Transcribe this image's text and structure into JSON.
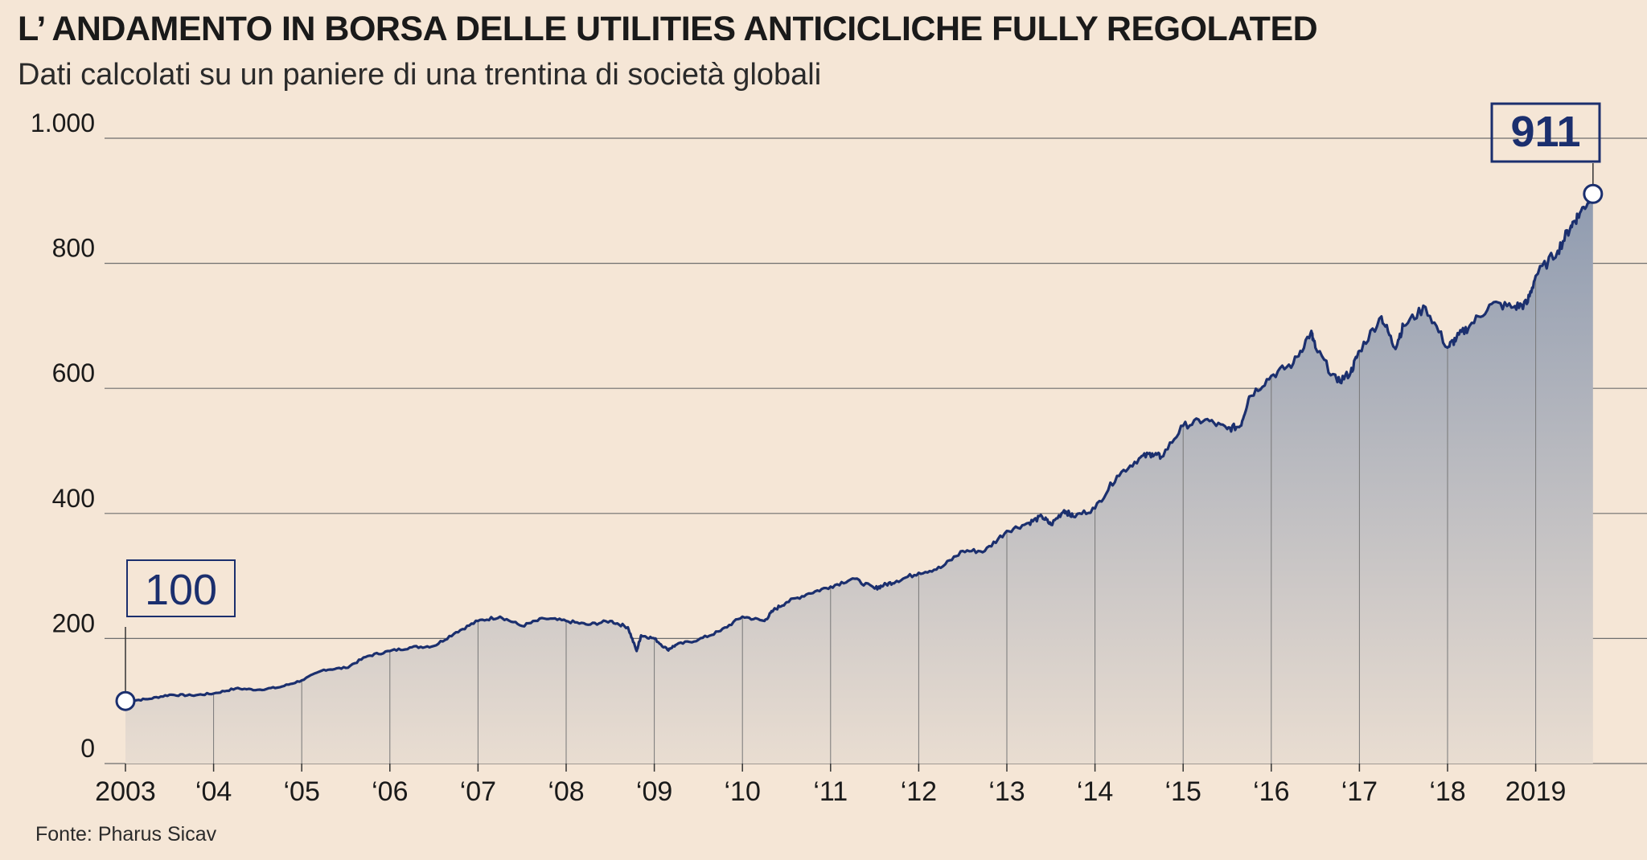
{
  "title": "L’ ANDAMENTO IN BORSA DELLE UTILITIES ANTICICLICHE FULLY REGOLATED",
  "subtitle": "Dati calcolati su un paniere di una trentina di società globali",
  "source": "Fonte: Pharus Sicav",
  "colors": {
    "line": "#1b2f6e",
    "area_top": "#8f9bb0",
    "area_bottom": "#e9ddd1",
    "grid": "#6e6e6e",
    "background": "#f5e6d6"
  },
  "chart_data": {
    "type": "area",
    "title": "L’ ANDAMENTO IN BORSA DELLE UTILITIES ANTICICLICHE FULLY REGOLATED",
    "subtitle": "Dati calcolati su un paniere di una trentina di società globali",
    "xlabel": "",
    "ylabel": "",
    "ylim": [
      0,
      1000
    ],
    "xlim": [
      2003.0,
      2020.2
    ],
    "grid": true,
    "y_ticks": [
      {
        "value": 0,
        "label": "0"
      },
      {
        "value": 200,
        "label": "200"
      },
      {
        "value": 400,
        "label": "400"
      },
      {
        "value": 600,
        "label": "600"
      },
      {
        "value": 800,
        "label": "800"
      },
      {
        "value": 1000,
        "label": "1.000"
      }
    ],
    "x_ticks": [
      {
        "value": 2003,
        "label": "2003"
      },
      {
        "value": 2004,
        "label": "‘04"
      },
      {
        "value": 2005,
        "label": "‘05"
      },
      {
        "value": 2006,
        "label": "‘06"
      },
      {
        "value": 2007,
        "label": "‘07"
      },
      {
        "value": 2008,
        "label": "‘08"
      },
      {
        "value": 2009,
        "label": "‘09"
      },
      {
        "value": 2010,
        "label": "‘10"
      },
      {
        "value": 2011,
        "label": "‘11"
      },
      {
        "value": 2012,
        "label": "‘12"
      },
      {
        "value": 2013,
        "label": "‘13"
      },
      {
        "value": 2014,
        "label": "‘14"
      },
      {
        "value": 2015,
        "label": "‘15"
      },
      {
        "value": 2016,
        "label": "‘16"
      },
      {
        "value": 2017,
        "label": "‘17"
      },
      {
        "value": 2018,
        "label": "‘18"
      },
      {
        "value": 2019,
        "label": "2019"
      }
    ],
    "x": [
      2003.0,
      2003.25,
      2003.5,
      2003.75,
      2004.0,
      2004.25,
      2004.5,
      2004.75,
      2005.0,
      2005.25,
      2005.5,
      2005.75,
      2006.0,
      2006.25,
      2006.5,
      2006.75,
      2007.0,
      2007.25,
      2007.5,
      2007.75,
      2008.0,
      2008.25,
      2008.5,
      2008.7,
      2008.8,
      2008.85,
      2009.0,
      2009.15,
      2009.25,
      2009.5,
      2009.75,
      2010.0,
      2010.25,
      2010.35,
      2010.5,
      2010.75,
      2011.0,
      2011.25,
      2011.5,
      2011.6,
      2011.75,
      2012.0,
      2012.25,
      2012.5,
      2012.75,
      2013.0,
      2013.25,
      2013.4,
      2013.5,
      2013.65,
      2013.75,
      2014.0,
      2014.25,
      2014.5,
      2014.65,
      2014.75,
      2015.0,
      2015.25,
      2015.5,
      2015.65,
      2015.75,
      2016.0,
      2016.25,
      2016.45,
      2016.5,
      2016.75,
      2016.9,
      2017.0,
      2017.25,
      2017.4,
      2017.5,
      2017.75,
      2018.0,
      2018.1,
      2018.25,
      2018.5,
      2018.75,
      2018.9,
      2019.0,
      2019.25,
      2019.4,
      2019.5,
      2019.65
    ],
    "series": [
      {
        "values": [
          100,
          103,
          110,
          109,
          112,
          120,
          118,
          122,
          133,
          150,
          153,
          172,
          180,
          186,
          188,
          210,
          228,
          235,
          220,
          232,
          228,
          222,
          228,
          218,
          180,
          205,
          200,
          182,
          190,
          198,
          212,
          235,
          228,
          245,
          258,
          272,
          283,
          296,
          280,
          285,
          292,
          305,
          313,
          340,
          340,
          372,
          385,
          395,
          382,
          405,
          395,
          408,
          460,
          488,
          496,
          490,
          540,
          550,
          535,
          540,
          587,
          620,
          640,
          690,
          665,
          610,
          625,
          660,
          715,
          665,
          700,
          730,
          665,
          680,
          700,
          735,
          730,
          735,
          780,
          820,
          860,
          880,
          911
        ]
      }
    ],
    "annotations": [
      {
        "x": 2003.0,
        "y": 100,
        "label": "100",
        "bold": false
      },
      {
        "x": 2019.65,
        "y": 911,
        "label": "911",
        "bold": true
      }
    ]
  }
}
